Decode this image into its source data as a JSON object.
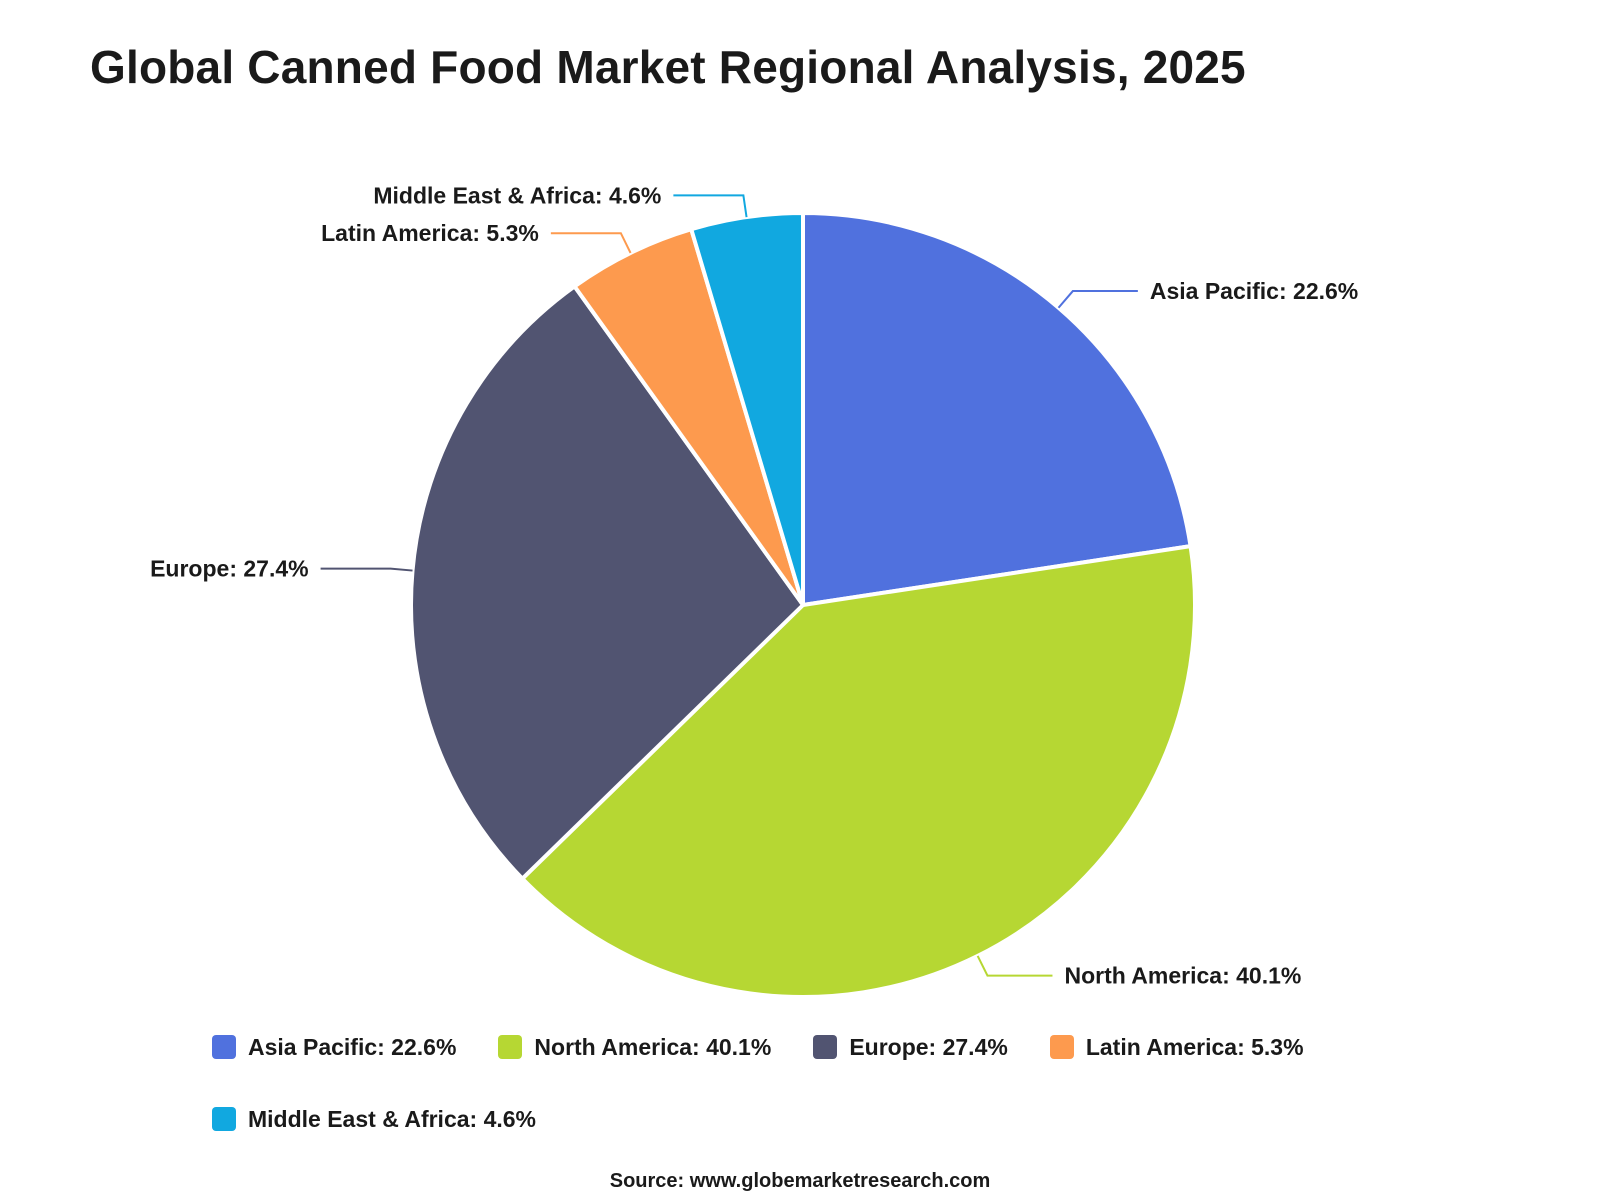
{
  "chart_data": {
    "type": "pie",
    "title": "Global Canned Food Market Regional Analysis, 2025",
    "categories": [
      "Asia Pacific",
      "North America",
      "Europe",
      "Latin America",
      "Middle East & Africa"
    ],
    "values": [
      22.6,
      40.1,
      27.4,
      5.3,
      4.6
    ],
    "unit": "%",
    "labels": [
      "Asia Pacific: 22.6%",
      "North America: 40.1%",
      "Europe: 27.4%",
      "Latin America: 5.3%",
      "Middle East & Africa: 4.6%"
    ],
    "colors": [
      "#5071de",
      "#b6d733",
      "#515471",
      "#fd9a4e",
      "#11a8e0"
    ],
    "legend_position": "bottom",
    "source": "Source: www.globemarketresearch.com"
  }
}
